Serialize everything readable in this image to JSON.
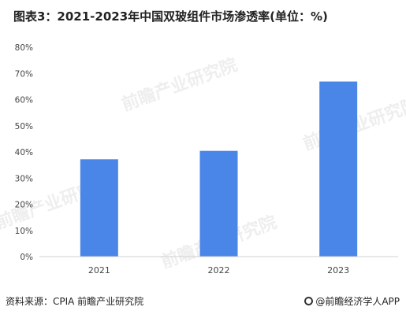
{
  "title": "图表3：2021-2023年中国双玻组件市场渗透率(单位：%)",
  "source": "资料来源：CPIA 前瞻产业研究院",
  "brand": {
    "icon": "qianzhan-logo-icon",
    "label": "@前瞻经济学人APP"
  },
  "watermark_text": "前瞻产业研究院",
  "colors": {
    "bar": "#4a86e8",
    "grid": "#e4e4e4",
    "axis": "#d0d0d0",
    "text": "#444444"
  },
  "chart_data": {
    "type": "bar",
    "categories": [
      "2021",
      "2022",
      "2023"
    ],
    "values": [
      37.2,
      40.4,
      66.9
    ],
    "ylim": [
      0,
      80
    ],
    "yticks": [
      0,
      10,
      20,
      30,
      40,
      50,
      60,
      70,
      80
    ],
    "ytick_labels": [
      "0%",
      "10%",
      "20%",
      "30%",
      "40%",
      "50%",
      "60%",
      "70%",
      "80%"
    ],
    "xlabel": "",
    "ylabel": "",
    "grid": false,
    "legend": "none"
  }
}
